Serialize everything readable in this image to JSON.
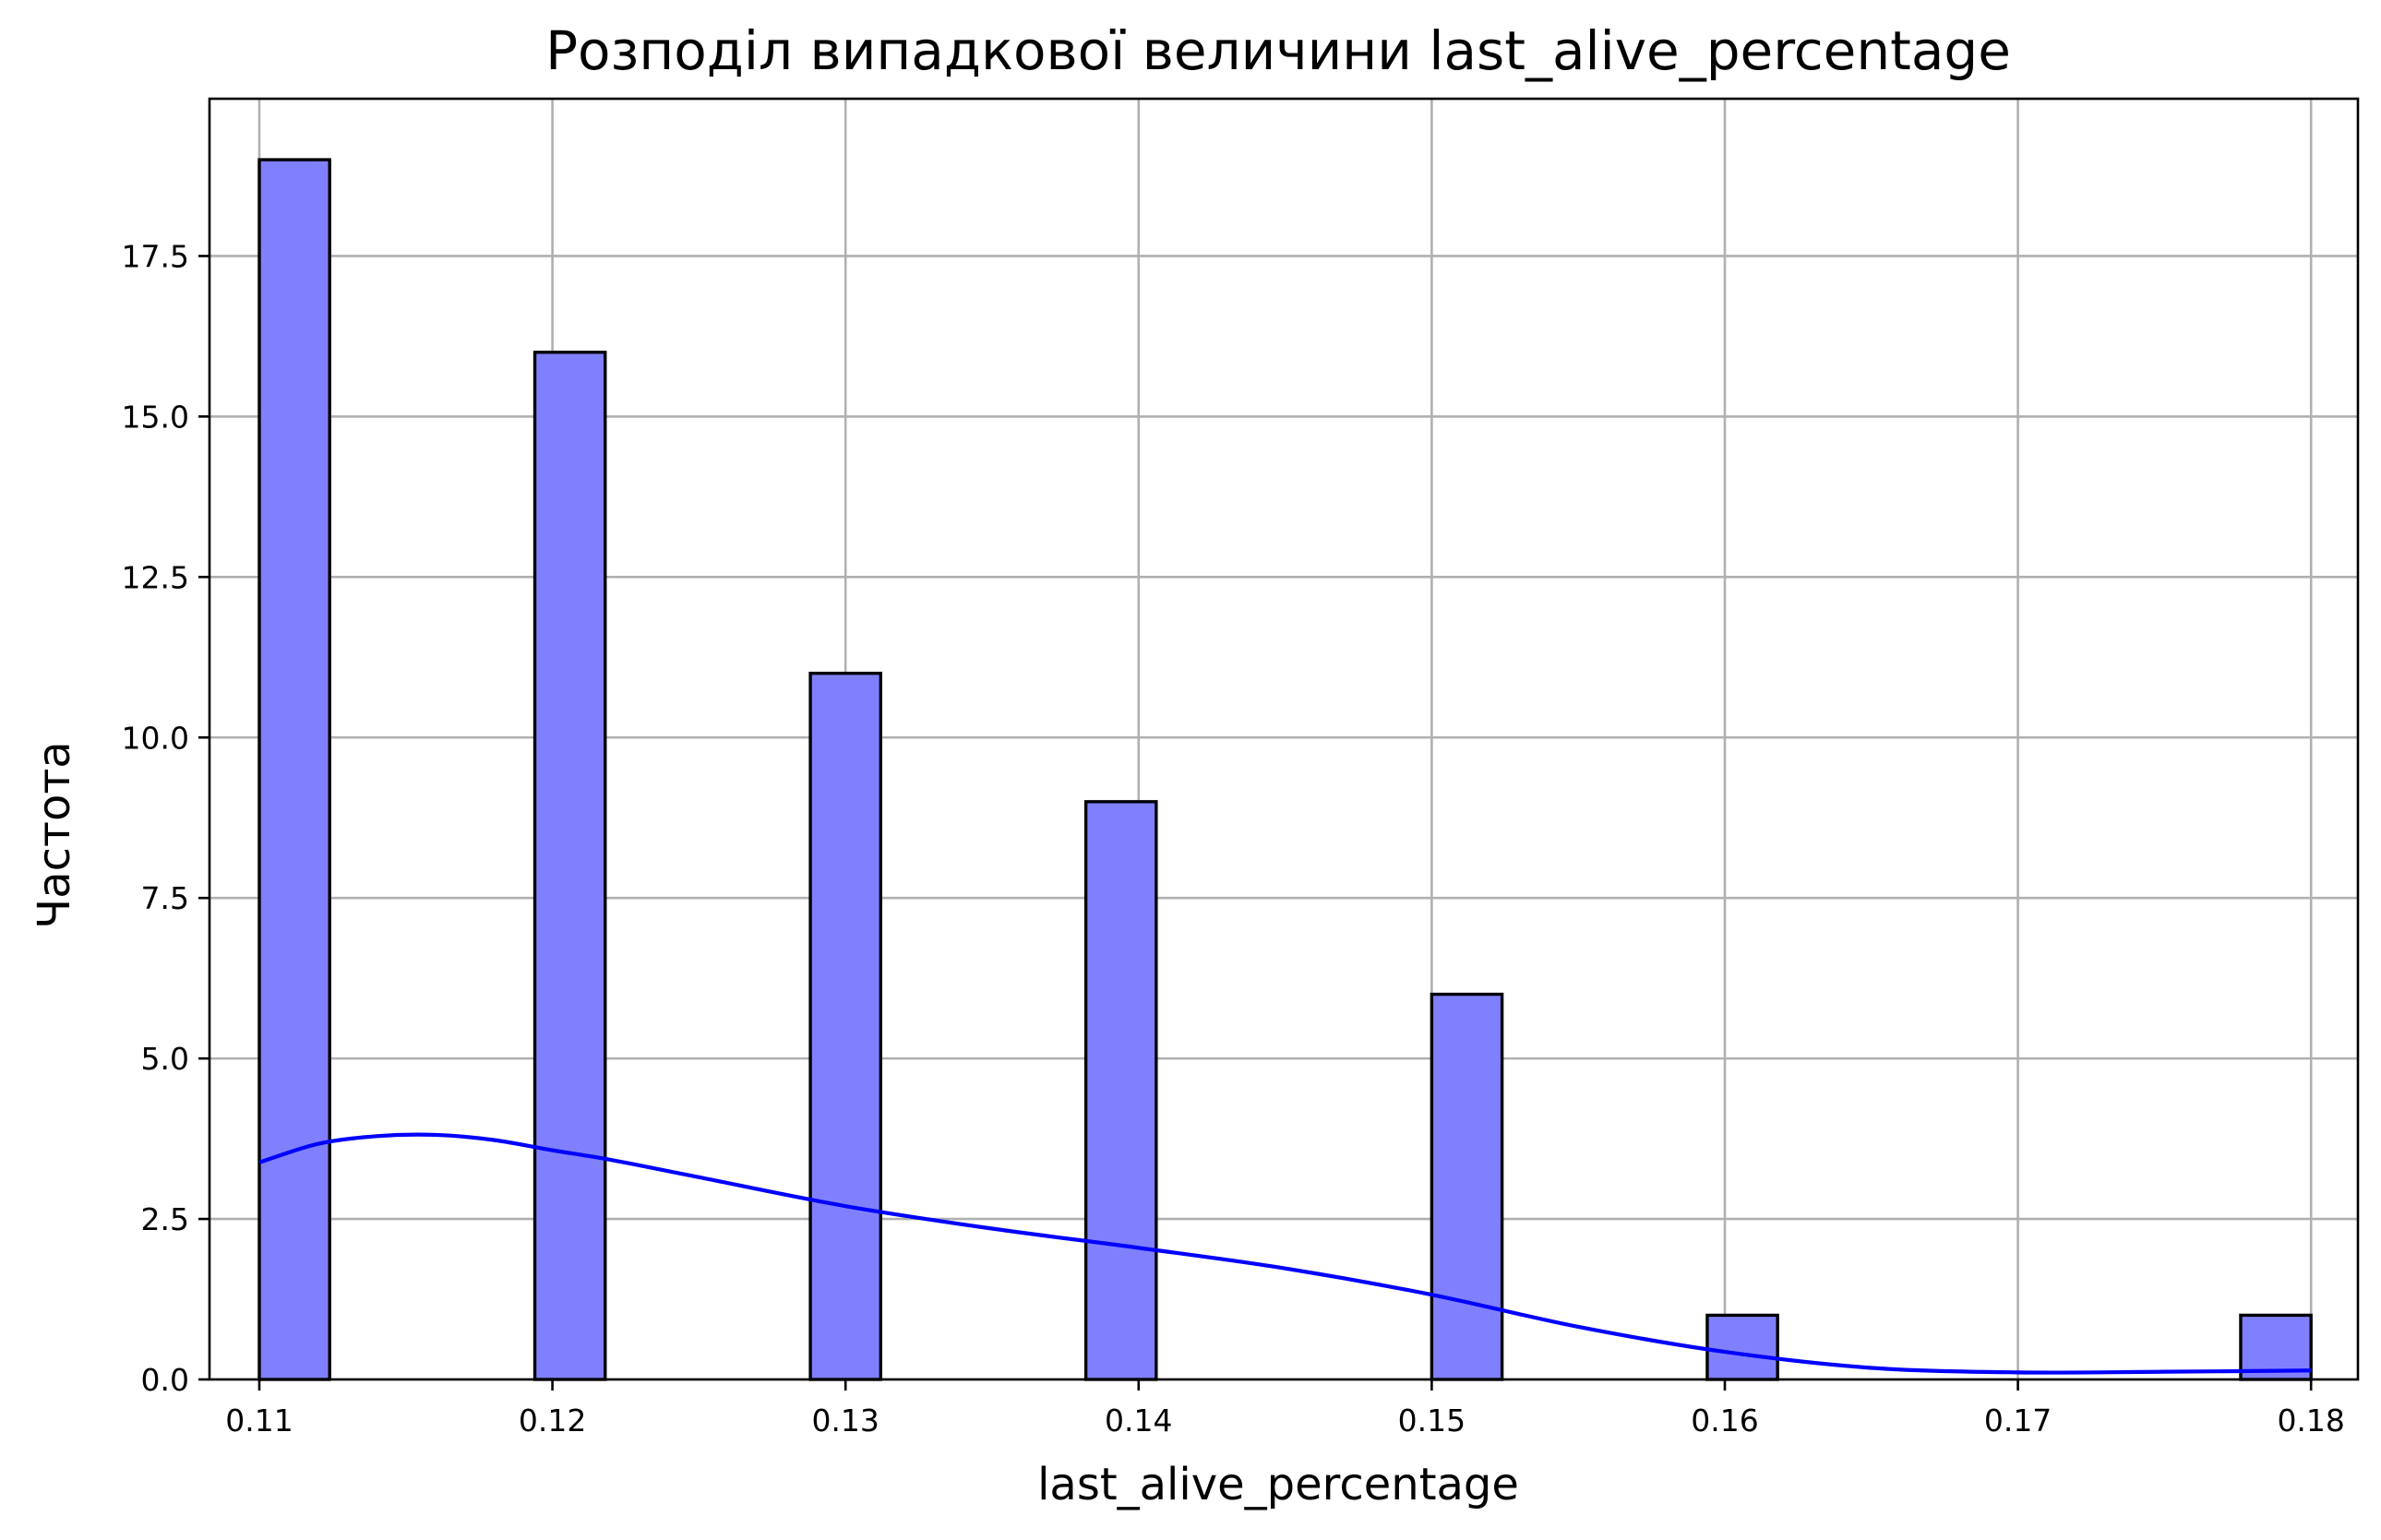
{
  "chart_data": {
    "type": "bar",
    "title": "Розподіл випадкової величини last_alive_percentage",
    "xlabel": "last_alive_percentage",
    "ylabel": "Частота",
    "xlim": [
      0.1083,
      0.1816
    ],
    "ylim": [
      0,
      19.95
    ],
    "x_ticks": [
      "0.11",
      "0.12",
      "0.13",
      "0.14",
      "0.15",
      "0.16",
      "0.17",
      "0.18"
    ],
    "x_tick_values": [
      0.11,
      0.12,
      0.13,
      0.14,
      0.15,
      0.16,
      0.17,
      0.18
    ],
    "y_ticks": [
      "0.0",
      "2.5",
      "5.0",
      "7.5",
      "10.0",
      "12.5",
      "15.0",
      "17.5"
    ],
    "y_tick_values": [
      0,
      2.5,
      5,
      7.5,
      10,
      12.5,
      15,
      17.5
    ],
    "bins": [
      {
        "x0": 0.11,
        "x1": 0.1124,
        "value": 19
      },
      {
        "x0": 0.1194,
        "x1": 0.1218,
        "value": 16
      },
      {
        "x0": 0.1288,
        "x1": 0.1312,
        "value": 11
      },
      {
        "x0": 0.1382,
        "x1": 0.1406,
        "value": 9
      },
      {
        "x0": 0.15,
        "x1": 0.1524,
        "value": 6
      },
      {
        "x0": 0.1594,
        "x1": 0.1618,
        "value": 1
      },
      {
        "x0": 0.1776,
        "x1": 0.18,
        "value": 1
      }
    ],
    "kde": {
      "x": [
        0.11,
        0.112,
        0.114,
        0.116,
        0.118,
        0.12,
        0.122,
        0.125,
        0.13,
        0.135,
        0.14,
        0.145,
        0.15,
        0.155,
        0.16,
        0.165,
        0.17,
        0.175,
        0.18
      ],
      "y": [
        3.38,
        3.67,
        3.79,
        3.81,
        3.73,
        3.57,
        3.42,
        3.15,
        2.7,
        2.35,
        2.05,
        1.73,
        1.32,
        0.82,
        0.43,
        0.18,
        0.11,
        0.12,
        0.14
      ]
    },
    "bar_color": "#8080ff",
    "kde_color": "#0000ff",
    "grid": true,
    "legend": "none"
  }
}
